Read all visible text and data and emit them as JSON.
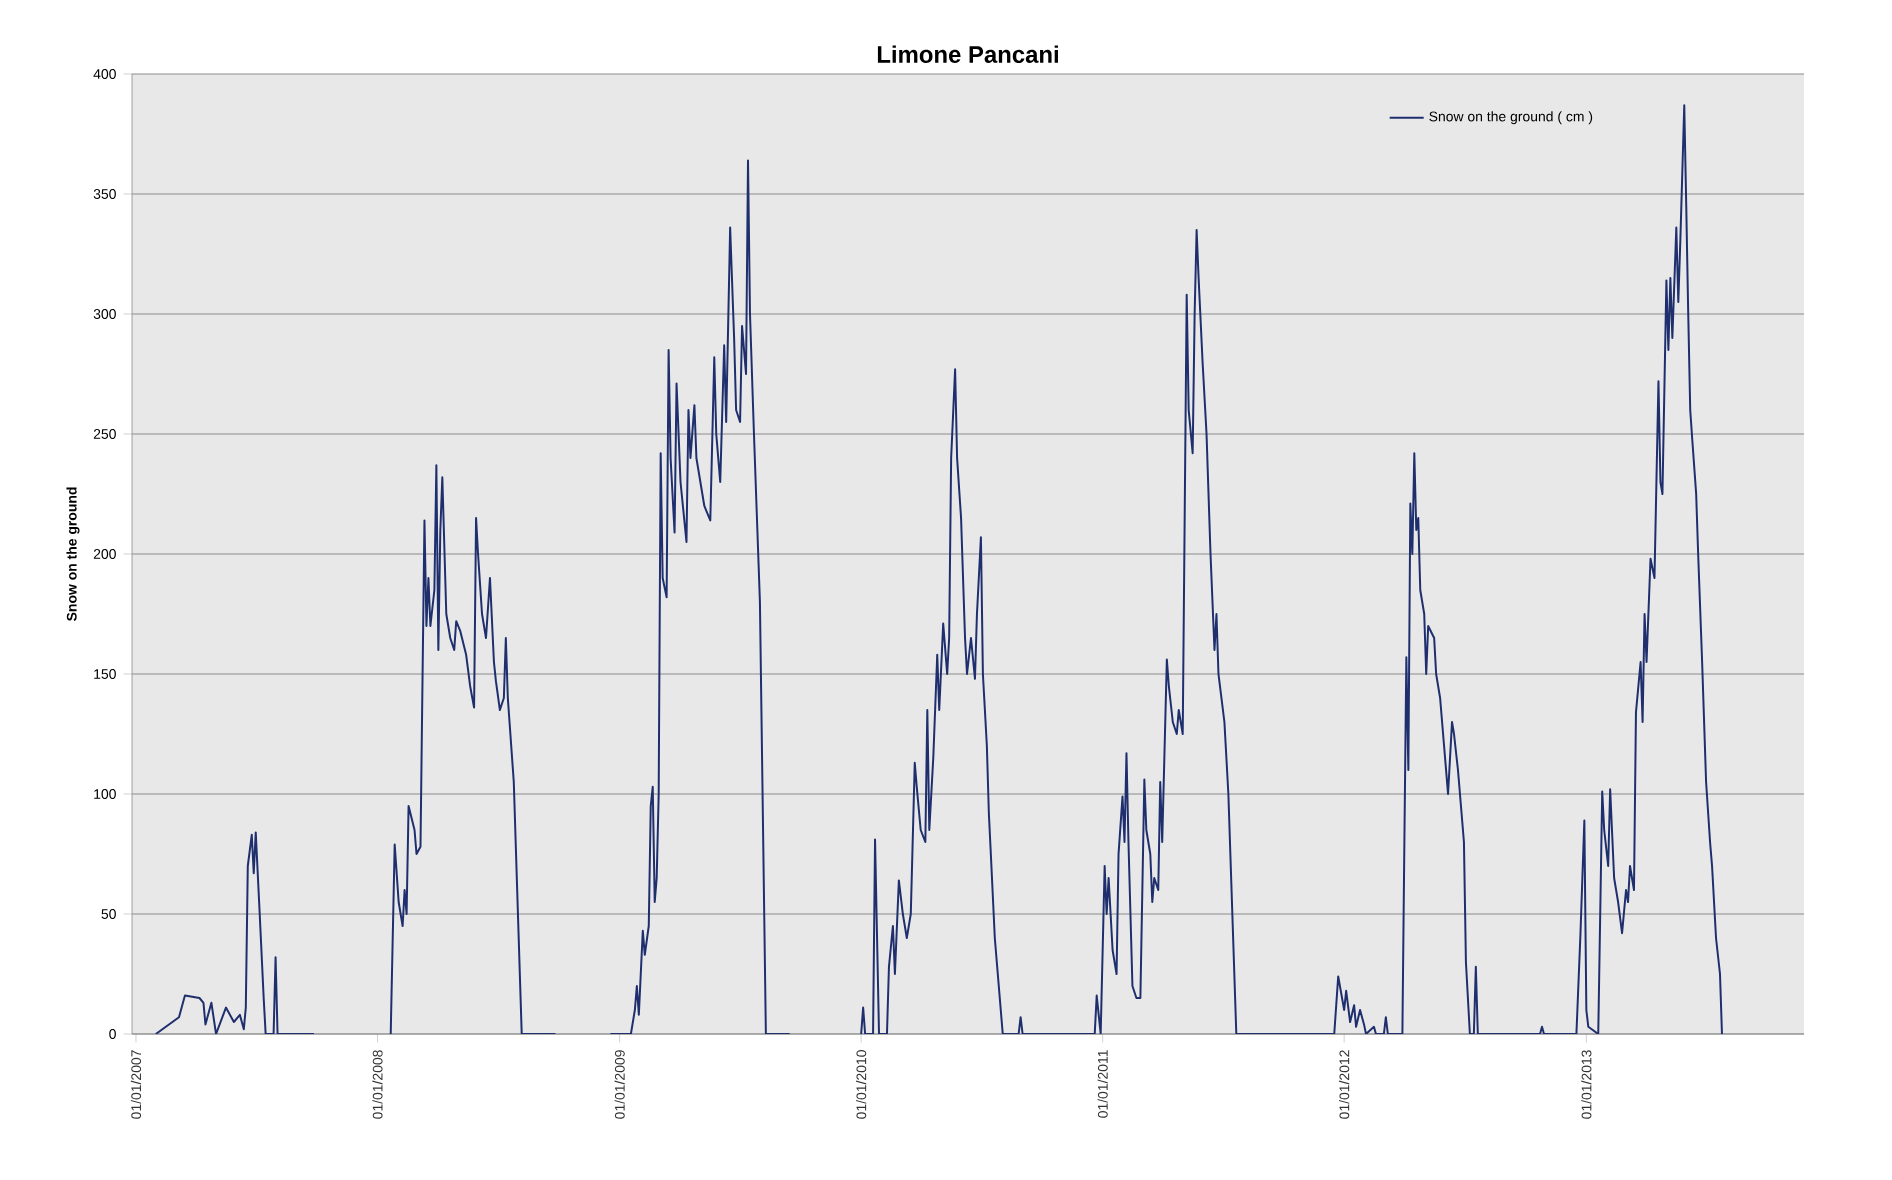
{
  "chart_data": {
    "type": "line",
    "title": "Limone Pancani",
    "ylabel": "Snow on the ground",
    "x": [
      "2007-01-31",
      "2007-03-07",
      "2007-03-16",
      "2007-04-07",
      "2007-04-13",
      "2007-04-16",
      "2007-04-25",
      "2007-05-02",
      "2007-05-17",
      "2007-05-29",
      "2007-06-07",
      "2007-06-13",
      "2007-06-16",
      "2007-06-19",
      "2007-06-25",
      "2007-06-28",
      "2007-07-01",
      "2007-07-07",
      "2007-07-13",
      "2007-07-16",
      "2007-07-28",
      "2007-07-31",
      "2007-08-03",
      "2007-09-27",
      "2007-11-15",
      "2008-01-21",
      "2008-01-27",
      "2008-02-02",
      "2008-02-08",
      "2008-02-11",
      "2008-02-14",
      "2008-02-17",
      "2008-02-26",
      "2008-02-29",
      "2008-03-06",
      "2008-03-12",
      "2008-03-15",
      "2008-03-18",
      "2008-03-21",
      "2008-03-27",
      "2008-03-30",
      "2008-04-02",
      "2008-04-05",
      "2008-04-08",
      "2008-04-14",
      "2008-04-20",
      "2008-04-26",
      "2008-04-29",
      "2008-05-05",
      "2008-05-14",
      "2008-05-20",
      "2008-05-26",
      "2008-05-29",
      "2008-06-01",
      "2008-06-07",
      "2008-06-13",
      "2008-06-19",
      "2008-06-25",
      "2008-06-28",
      "2008-07-04",
      "2008-07-10",
      "2008-07-13",
      "2008-07-16",
      "2008-07-25",
      "2008-08-06",
      "2008-09-26",
      "2008-11-15",
      "2008-12-18",
      "2009-01-18",
      "2009-01-24",
      "2009-01-27",
      "2009-01-30",
      "2009-02-05",
      "2009-02-08",
      "2009-02-14",
      "2009-02-17",
      "2009-02-20",
      "2009-02-23",
      "2009-02-26",
      "2009-03-01",
      "2009-03-04",
      "2009-03-07",
      "2009-03-13",
      "2009-03-16",
      "2009-03-19",
      "2009-03-25",
      "2009-03-28",
      "2009-04-03",
      "2009-04-12",
      "2009-04-15",
      "2009-04-18",
      "2009-04-24",
      "2009-04-27",
      "2009-05-09",
      "2009-05-18",
      "2009-05-24",
      "2009-05-27",
      "2009-06-02",
      "2009-06-08",
      "2009-06-11",
      "2009-06-17",
      "2009-06-23",
      "2009-06-26",
      "2009-07-02",
      "2009-07-05",
      "2009-07-11",
      "2009-07-14",
      "2009-07-17",
      "2009-07-23",
      "2009-08-01",
      "2009-08-10",
      "2009-09-15",
      "2009-11-15",
      "2010-01-01",
      "2010-01-04",
      "2010-01-07",
      "2010-01-19",
      "2010-01-22",
      "2010-01-28",
      "2010-02-09",
      "2010-02-12",
      "2010-02-18",
      "2010-02-21",
      "2010-02-27",
      "2010-03-05",
      "2010-03-11",
      "2010-03-17",
      "2010-03-23",
      "2010-03-26",
      "2010-04-01",
      "2010-04-08",
      "2010-04-11",
      "2010-04-14",
      "2010-04-20",
      "2010-04-26",
      "2010-04-29",
      "2010-05-05",
      "2010-05-11",
      "2010-05-14",
      "2010-05-17",
      "2010-05-23",
      "2010-05-26",
      "2010-06-01",
      "2010-06-07",
      "2010-06-10",
      "2010-06-16",
      "2010-06-22",
      "2010-06-25",
      "2010-07-01",
      "2010-07-04",
      "2010-07-10",
      "2010-07-13",
      "2010-07-16",
      "2010-07-22",
      "2010-07-28",
      "2010-08-03",
      "2010-08-27",
      "2010-08-30",
      "2010-09-02",
      "2010-11-29",
      "2010-12-20",
      "2010-12-23",
      "2010-12-29",
      "2011-01-04",
      "2011-01-07",
      "2011-01-10",
      "2011-01-16",
      "2011-01-22",
      "2011-01-25",
      "2011-01-31",
      "2011-02-03",
      "2011-02-06",
      "2011-02-09",
      "2011-02-15",
      "2011-02-21",
      "2011-02-27",
      "2011-03-05",
      "2011-03-08",
      "2011-03-14",
      "2011-03-17",
      "2011-03-20",
      "2011-03-26",
      "2011-03-29",
      "2011-04-01",
      "2011-04-08",
      "2011-04-11",
      "2011-04-17",
      "2011-04-23",
      "2011-04-26",
      "2011-05-02",
      "2011-05-08",
      "2011-05-11",
      "2011-05-17",
      "2011-05-20",
      "2011-05-23",
      "2011-05-26",
      "2011-06-01",
      "2011-06-07",
      "2011-06-13",
      "2011-06-19",
      "2011-06-22",
      "2011-06-25",
      "2011-07-04",
      "2011-07-10",
      "2011-07-16",
      "2011-07-22",
      "2011-12-17",
      "2011-12-23",
      "2012-01-01",
      "2012-01-04",
      "2012-01-10",
      "2012-01-16",
      "2012-01-19",
      "2012-01-25",
      "2012-01-31",
      "2012-02-03",
      "2012-02-15",
      "2012-02-18",
      "2012-03-01",
      "2012-03-04",
      "2012-03-07",
      "2012-03-29",
      "2012-04-01",
      "2012-04-04",
      "2012-04-07",
      "2012-04-10",
      "2012-04-13",
      "2012-04-16",
      "2012-04-19",
      "2012-04-22",
      "2012-04-25",
      "2012-05-01",
      "2012-05-04",
      "2012-05-07",
      "2012-05-16",
      "2012-05-19",
      "2012-05-25",
      "2012-05-31",
      "2012-06-06",
      "2012-06-12",
      "2012-06-15",
      "2012-06-21",
      "2012-06-30",
      "2012-07-03",
      "2012-07-09",
      "2012-07-15",
      "2012-07-18",
      "2012-07-21",
      "2012-10-23",
      "2012-10-26",
      "2012-10-29",
      "2012-12-17",
      "2012-12-23",
      "2012-12-29",
      "2013-01-01",
      "2013-01-04",
      "2013-01-19",
      "2013-01-25",
      "2013-01-28",
      "2013-02-03",
      "2013-02-06",
      "2013-02-12",
      "2013-02-18",
      "2013-02-24",
      "2013-03-02",
      "2013-03-05",
      "2013-03-08",
      "2013-03-14",
      "2013-03-17",
      "2013-03-24",
      "2013-03-27",
      "2013-03-30",
      "2013-04-02",
      "2013-04-08",
      "2013-04-14",
      "2013-04-20",
      "2013-04-23",
      "2013-04-26",
      "2013-05-02",
      "2013-05-05",
      "2013-05-08",
      "2013-05-11",
      "2013-05-17",
      "2013-05-20",
      "2013-05-23",
      "2013-05-29",
      "2013-06-01",
      "2013-06-04",
      "2013-06-07",
      "2013-06-10",
      "2013-06-16",
      "2013-06-19",
      "2013-06-25",
      "2013-07-01",
      "2013-07-07",
      "2013-07-10",
      "2013-07-16",
      "2013-07-22",
      "2013-07-25"
    ],
    "series": [
      {
        "name": "Snow on the ground ( cm )",
        "color": "#1f2f6e",
        "values": [
          0,
          7,
          16,
          15,
          13,
          4,
          13,
          0,
          11,
          5,
          8,
          2,
          11,
          70,
          83,
          67,
          84,
          50,
          15,
          0,
          0,
          32,
          0,
          0,
          null,
          0,
          79,
          55,
          45,
          60,
          50,
          95,
          85,
          75,
          78,
          214,
          170,
          190,
          170,
          185,
          237,
          160,
          210,
          232,
          175,
          165,
          160,
          172,
          168,
          158,
          145,
          136,
          215,
          200,
          175,
          165,
          190,
          155,
          147,
          135,
          140,
          165,
          140,
          105,
          0,
          0,
          null,
          0,
          0,
          10,
          20,
          8,
          43,
          33,
          45,
          95,
          103,
          55,
          65,
          100,
          242,
          190,
          182,
          285,
          240,
          209,
          271,
          230,
          205,
          260,
          240,
          262,
          240,
          220,
          214,
          282,
          250,
          230,
          287,
          255,
          336,
          290,
          260,
          255,
          295,
          275,
          364,
          300,
          250,
          180,
          0,
          0,
          null,
          0,
          11,
          0,
          0,
          81,
          0,
          0,
          28,
          45,
          25,
          64,
          50,
          40,
          50,
          113,
          103,
          85,
          80,
          135,
          85,
          115,
          158,
          135,
          171,
          150,
          165,
          240,
          277,
          240,
          215,
          165,
          150,
          165,
          148,
          175,
          207,
          150,
          120,
          92,
          75,
          40,
          20,
          0,
          0,
          7,
          0,
          0,
          0,
          16,
          0,
          70,
          50,
          65,
          35,
          25,
          75,
          99,
          80,
          117,
          80,
          20,
          15,
          15,
          106,
          85,
          75,
          55,
          65,
          60,
          105,
          80,
          156,
          145,
          130,
          125,
          135,
          125,
          308,
          260,
          242,
          300,
          335,
          315,
          280,
          250,
          200,
          160,
          175,
          150,
          130,
          100,
          50,
          0,
          0,
          24,
          10,
          18,
          5,
          12,
          3,
          10,
          4,
          0,
          3,
          0,
          0,
          7,
          0,
          0,
          80,
          157,
          110,
          221,
          200,
          242,
          210,
          215,
          185,
          175,
          150,
          170,
          165,
          150,
          140,
          120,
          100,
          130,
          125,
          110,
          80,
          30,
          0,
          0,
          28,
          0,
          0,
          3,
          0,
          0,
          41,
          89,
          10,
          3,
          0,
          101,
          85,
          70,
          102,
          65,
          55,
          42,
          60,
          55,
          70,
          60,
          134,
          155,
          130,
          175,
          155,
          198,
          190,
          272,
          230,
          225,
          314,
          285,
          315,
          290,
          336,
          305,
          330,
          387,
          345,
          300,
          260,
          248,
          225,
          200,
          155,
          105,
          80,
          70,
          40,
          25,
          0
        ]
      }
    ],
    "xlim": [
      "2006-12-26",
      "2013-11-26"
    ],
    "xticks": [
      {
        "value": "2007-01-01",
        "label": "01/01/2007"
      },
      {
        "value": "2008-01-01",
        "label": "01/01/2008"
      },
      {
        "value": "2009-01-01",
        "label": "01/01/2009"
      },
      {
        "value": "2010-01-01",
        "label": "01/01/2010"
      },
      {
        "value": "2011-01-01",
        "label": "01/01/2011"
      },
      {
        "value": "2012-01-01",
        "label": "01/01/2012"
      },
      {
        "value": "2013-01-01",
        "label": "01/01/2013"
      }
    ],
    "ylim": [
      0,
      400
    ],
    "yticks": [
      0,
      50,
      100,
      150,
      200,
      250,
      300,
      350,
      400
    ],
    "grid": "y",
    "legend": "top right",
    "marker": "none",
    "line_style": "solid"
  }
}
